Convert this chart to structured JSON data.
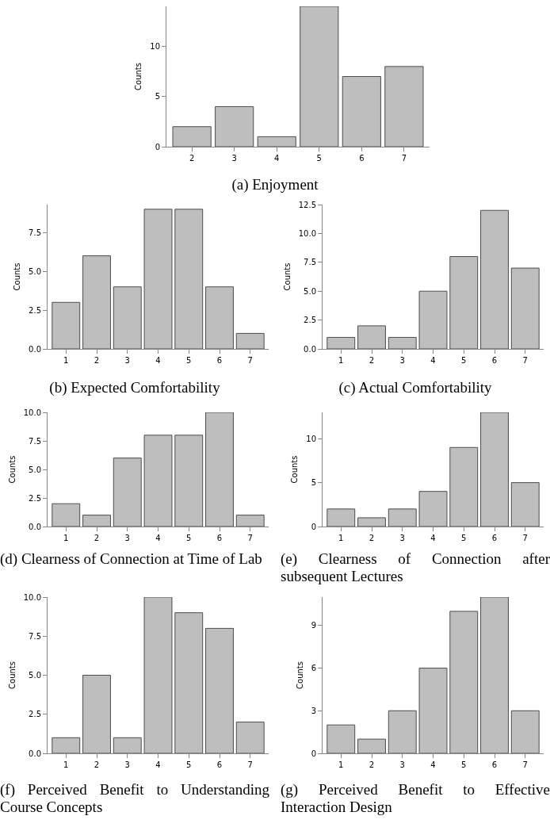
{
  "chart_data": [
    {
      "type": "bar",
      "title": "(a) Enjoyment",
      "ylabel": "Counts",
      "categories": [
        "2",
        "3",
        "4",
        "5",
        "6",
        "7"
      ],
      "values": [
        2,
        4,
        1,
        14,
        7,
        8
      ],
      "color": "#bebebe",
      "ylim": [
        0,
        14
      ],
      "yticks": [
        0,
        5,
        10
      ],
      "grid": false
    },
    {
      "type": "bar",
      "title": "(b) Expected Comfortability",
      "ylabel": "Counts",
      "categories": [
        "1",
        "2",
        "3",
        "4",
        "5",
        "6",
        "7"
      ],
      "values": [
        3,
        6,
        4,
        9,
        9,
        4,
        1
      ],
      "color": "#bebebe",
      "ylim": [
        0,
        9.3
      ],
      "yticks": [
        {
          "value": 0,
          "label": "0.0"
        },
        2.5,
        {
          "value": 5,
          "label": "5.0"
        },
        7.5
      ],
      "grid": false
    },
    {
      "type": "bar",
      "title": "(c) Actual Comfortability",
      "ylabel": "Counts",
      "categories": [
        "1",
        "2",
        "3",
        "4",
        "5",
        "6",
        "7"
      ],
      "values": [
        1,
        2,
        1,
        5,
        8,
        12,
        7
      ],
      "color": "#bebebe",
      "ylim": [
        0,
        12.5
      ],
      "yticks": [
        {
          "value": 0,
          "label": "0.0"
        },
        2.5,
        {
          "value": 5,
          "label": "5.0"
        },
        7.5,
        {
          "value": 10,
          "label": "10.0"
        },
        12.5
      ],
      "grid": false
    },
    {
      "type": "bar",
      "title": "(d) Clearness of Connection at Time of Lab",
      "ylabel": "Counts",
      "categories": [
        "1",
        "2",
        "3",
        "4",
        "5",
        "6",
        "7"
      ],
      "values": [
        2,
        1,
        6,
        8,
        8,
        10,
        1
      ],
      "color": "#bebebe",
      "ylim": [
        0,
        10
      ],
      "yticks": [
        {
          "value": 0,
          "label": "0.0"
        },
        2.5,
        {
          "value": 5,
          "label": "5.0"
        },
        7.5,
        {
          "value": 10,
          "label": "10.0"
        }
      ],
      "grid": false
    },
    {
      "type": "bar",
      "title": "(e) Clearness of Connection after subsequent Lectures",
      "ylabel": "Counts",
      "categories": [
        "1",
        "2",
        "3",
        "4",
        "5",
        "6",
        "7"
      ],
      "values": [
        2,
        1,
        2,
        4,
        9,
        13,
        5
      ],
      "color": "#bebebe",
      "ylim": [
        0,
        13
      ],
      "yticks": [
        0,
        5,
        10
      ],
      "grid": false
    },
    {
      "type": "bar",
      "title": "(f) Perceived Benefit to Understanding Course Concepts",
      "ylabel": "Counts",
      "categories": [
        "1",
        "2",
        "3",
        "4",
        "5",
        "6",
        "7"
      ],
      "values": [
        1,
        5,
        1,
        10,
        9,
        8,
        2
      ],
      "color": "#bebebe",
      "ylim": [
        0,
        10
      ],
      "yticks": [
        {
          "value": 0,
          "label": "0.0"
        },
        2.5,
        {
          "value": 5,
          "label": "5.0"
        },
        7.5,
        {
          "value": 10,
          "label": "10.0"
        }
      ],
      "grid": false
    },
    {
      "type": "bar",
      "title": "(g) Perceived Benefit to Effective Interaction Design",
      "ylabel": "Counts",
      "categories": [
        "1",
        "2",
        "3",
        "4",
        "5",
        "6",
        "7"
      ],
      "values": [
        2,
        1,
        3,
        6,
        10,
        11,
        3
      ],
      "color": "#bebebe",
      "ylim": [
        0,
        11
      ],
      "yticks": [
        0,
        3,
        6,
        9
      ],
      "grid": false
    }
  ]
}
